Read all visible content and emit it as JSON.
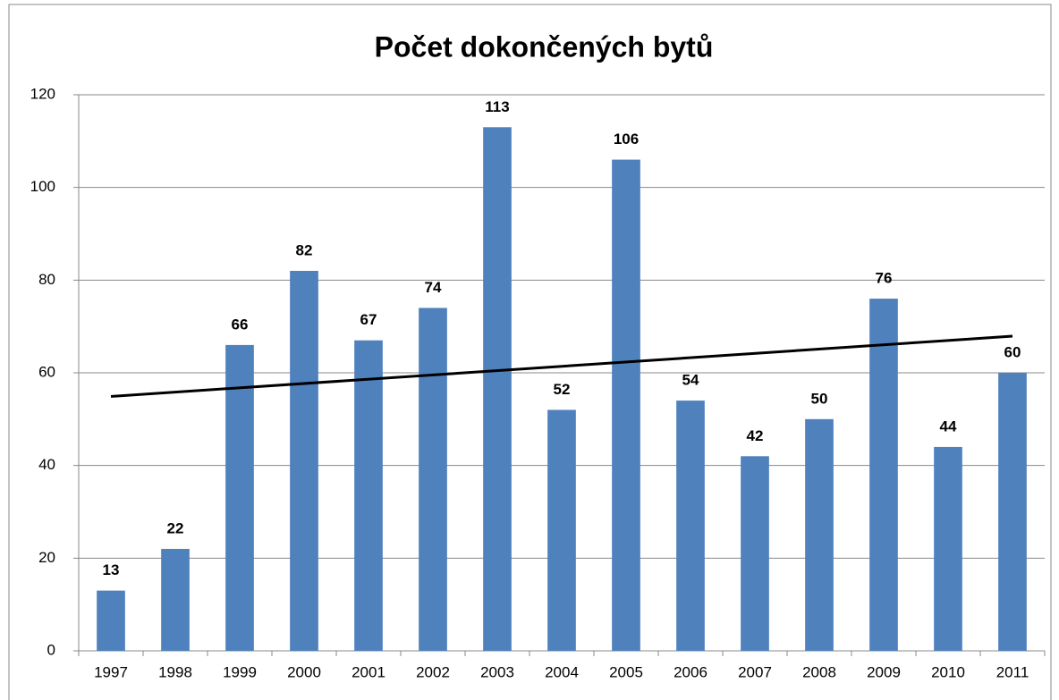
{
  "chart_data": {
    "type": "bar",
    "title": "Počet dokončených bytů",
    "categories": [
      "1997",
      "1998",
      "1999",
      "2000",
      "2001",
      "2002",
      "2003",
      "2004",
      "2005",
      "2006",
      "2007",
      "2008",
      "2009",
      "2010",
      "2011"
    ],
    "values": [
      13,
      22,
      66,
      82,
      67,
      74,
      113,
      52,
      106,
      54,
      42,
      50,
      76,
      44,
      60
    ],
    "color": "#4f81bd",
    "trendline": {
      "color": "#000000",
      "values": [
        54.9,
        67.9
      ]
    },
    "ylim": [
      0,
      120
    ],
    "yticks": [
      0,
      20,
      40,
      60,
      80,
      100,
      120
    ],
    "grid": true
  }
}
